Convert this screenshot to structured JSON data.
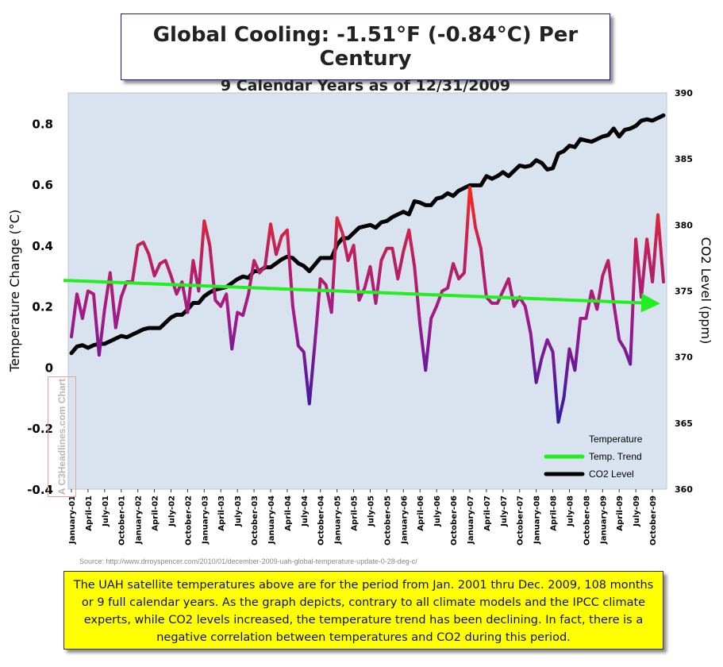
{
  "title": {
    "main": "Global Cooling: -1.51°F (-0.84°C) Per Century",
    "sub": "9 Calendar Years as of 12/31/2009"
  },
  "watermark": "A C3Headlines.com Chart",
  "source": "Source: http://www.drroyspencer.com/2010/01/december-2009-uah-global-temperature-update-0-28-deg-c/",
  "note": "The UAH satellite temperatures above are for the period from Jan. 2001 thru Dec. 2009, 108 months or 9 full calendar years. As the graph depicts, contrary to all climate models and the IPCC climate experts, while CO2 levels increased, the temperature trend has been declining. In fact, there is a negative correlation between temperatures and CO2 during this period.",
  "colors": {
    "plot_background": "#d9e3f0",
    "temperature_high": "#ff2a1a",
    "temperature_mid": "#a01a8a",
    "temperature_low": "#2a1aa8",
    "trend": "#22ee22",
    "co2": "#000000"
  },
  "chart_data": {
    "type": "line",
    "xlabel": "",
    "ylabel": "Temperature Change (°C)",
    "y2label": "CO2 Level (ppm)",
    "ylim": [
      -0.4,
      0.9
    ],
    "y2lim": [
      360,
      390
    ],
    "yticks": [
      "-0.4",
      "-0.2",
      "0",
      "0.2",
      "0.4",
      "0.6",
      "0.8"
    ],
    "y2ticks": [
      "360",
      "365",
      "370",
      "375",
      "380",
      "385",
      "390"
    ],
    "grid": false,
    "legend_position": "bottom-right",
    "x_tick_labels": [
      "January-01",
      "April-01",
      "July-01",
      "October-01",
      "January-02",
      "April-02",
      "July-02",
      "October-02",
      "January-03",
      "April-03",
      "July-03",
      "October-03",
      "January-04",
      "April-04",
      "July-04",
      "October-04",
      "January-05",
      "April-05",
      "July-05",
      "October-05",
      "January-06",
      "April-06",
      "July-06",
      "October-06",
      "January-07",
      "April-07",
      "July-07",
      "October-07",
      "January-08",
      "April-08",
      "July-08",
      "October-08",
      "January-09",
      "April-09",
      "July-09",
      "October-09"
    ],
    "series": [
      {
        "name": "Temperature",
        "axis": "left",
        "values": [
          0.1,
          0.24,
          0.16,
          0.25,
          0.24,
          0.04,
          0.19,
          0.31,
          0.13,
          0.23,
          0.28,
          0.28,
          0.4,
          0.41,
          0.37,
          0.3,
          0.34,
          0.35,
          0.3,
          0.24,
          0.28,
          0.18,
          0.35,
          0.25,
          0.48,
          0.4,
          0.22,
          0.2,
          0.24,
          0.06,
          0.18,
          0.17,
          0.24,
          0.35,
          0.31,
          0.33,
          0.47,
          0.37,
          0.43,
          0.45,
          0.2,
          0.07,
          0.05,
          -0.12,
          0.08,
          0.29,
          0.27,
          0.18,
          0.49,
          0.44,
          0.35,
          0.4,
          0.22,
          0.26,
          0.33,
          0.21,
          0.35,
          0.39,
          0.39,
          0.29,
          0.38,
          0.45,
          0.33,
          0.14,
          -0.01,
          0.16,
          0.2,
          0.25,
          0.26,
          0.34,
          0.29,
          0.31,
          0.59,
          0.46,
          0.39,
          0.23,
          0.21,
          0.21,
          0.25,
          0.29,
          0.2,
          0.23,
          0.2,
          0.11,
          -0.05,
          0.03,
          0.09,
          0.05,
          -0.18,
          -0.1,
          0.06,
          -0.01,
          0.16,
          0.16,
          0.25,
          0.19,
          0.3,
          0.35,
          0.21,
          0.09,
          0.06,
          0.01,
          0.42,
          0.23,
          0.42,
          0.28,
          0.5,
          0.28
        ]
      },
      {
        "name": "Temp. Trend",
        "axis": "left",
        "values": [
          0.285,
          0.21
        ]
      },
      {
        "name": "CO2 Level",
        "axis": "right",
        "values": [
          370.3,
          370.8,
          370.9,
          370.7,
          370.9,
          371.0,
          371.0,
          371.2,
          371.4,
          371.6,
          371.5,
          371.7,
          371.9,
          372.1,
          372.2,
          372.2,
          372.2,
          372.6,
          373.0,
          373.2,
          373.2,
          373.6,
          374.1,
          374.1,
          374.6,
          374.9,
          375.1,
          375.2,
          375.3,
          375.6,
          375.9,
          376.1,
          376.0,
          376.5,
          376.5,
          376.8,
          376.8,
          377.1,
          377.4,
          377.6,
          377.5,
          377.1,
          376.9,
          376.5,
          377.0,
          377.5,
          377.5,
          377.5,
          378.5,
          379.0,
          379.0,
          379.4,
          379.8,
          379.9,
          380.0,
          379.8,
          380.2,
          380.3,
          380.6,
          380.8,
          381.0,
          380.8,
          381.8,
          381.7,
          381.5,
          381.5,
          382.0,
          382.1,
          382.4,
          382.2,
          382.6,
          382.8,
          383.0,
          383.0,
          383.0,
          383.7,
          383.5,
          383.7,
          384.0,
          383.7,
          384.1,
          384.5,
          384.4,
          384.5,
          384.9,
          384.7,
          384.2,
          384.3,
          385.4,
          385.6,
          386.0,
          385.9,
          386.5,
          386.4,
          386.3,
          386.5,
          386.7,
          386.8,
          387.3,
          386.7,
          387.2,
          387.3,
          387.5,
          387.9,
          388.0,
          387.9,
          388.1,
          388.3
        ]
      }
    ]
  }
}
